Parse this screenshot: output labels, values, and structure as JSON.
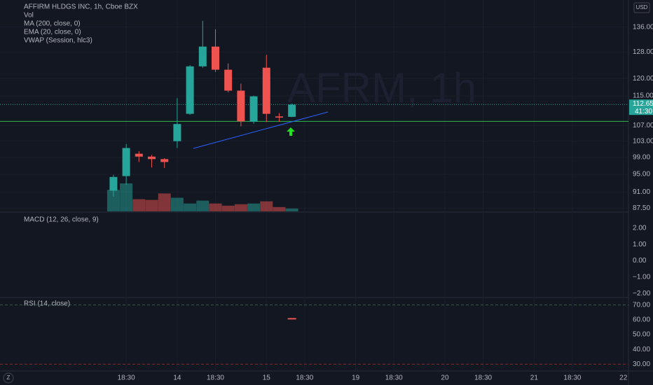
{
  "chart_data": [
    {
      "type": "candlestick",
      "title": "AFFIRM HLDGS INC, 1h, Cboe BZX",
      "legend_items": [
        "Vol",
        "MA (200, close, 0)",
        "EMA (20, close, 0)",
        "VWAP (Session, hlc3)"
      ],
      "currency": "USD",
      "watermark": "AFRM, 1h",
      "x": [
        0,
        1,
        2,
        3,
        4,
        5,
        6,
        7,
        8,
        9,
        10,
        11,
        12,
        13,
        14
      ],
      "open": [
        91.3,
        94.6,
        99.9,
        99.2,
        98.6,
        103.0,
        110.1,
        123.6,
        129.7,
        122.6,
        116.5,
        108.0,
        123.2,
        109.4,
        109.3
      ],
      "high": [
        94.9,
        102.3,
        100.5,
        99.6,
        98.8,
        114.4,
        124.0,
        138.1,
        135.3,
        124.5,
        118.5,
        115.1,
        127.1,
        110.3,
        112.9
      ],
      "low": [
        90.0,
        92.6,
        97.9,
        96.6,
        96.5,
        101.3,
        109.8,
        123.2,
        121.9,
        116.0,
        106.8,
        107.5,
        107.9,
        108.0,
        109.2
      ],
      "close": [
        94.4,
        101.3,
        99.2,
        98.6,
        97.9,
        107.4,
        123.6,
        129.7,
        122.6,
        116.5,
        108.1,
        114.9,
        110.1,
        109.1,
        112.6
      ],
      "volume": [
        30,
        39,
        17,
        16,
        25,
        19,
        11,
        15,
        11,
        8,
        10,
        11,
        14,
        6,
        4
      ],
      "up_color": "#26a69a",
      "down_color": "#ef5350",
      "log_scale": true,
      "grid": true,
      "xlim": [
        -8.9,
        40.4
      ],
      "xticks": [
        {
          "value": 1,
          "label": "18:30"
        },
        {
          "value": 5,
          "label": "14"
        },
        {
          "value": 8,
          "label": "18:30"
        },
        {
          "value": 12,
          "label": "15"
        },
        {
          "value": 15,
          "label": "18:30"
        },
        {
          "value": 19,
          "label": "19"
        },
        {
          "value": 22,
          "label": "18:30"
        },
        {
          "value": 26,
          "label": "20"
        },
        {
          "value": 29,
          "label": "18:30"
        },
        {
          "value": 33,
          "label": "21"
        },
        {
          "value": 36,
          "label": "18:30"
        },
        {
          "value": 40,
          "label": "22"
        }
      ],
      "ylim": [
        86.8,
        145.3
      ],
      "yticks": [
        {
          "value": 87.5,
          "label": "87.50"
        },
        {
          "value": 91,
          "label": "91.00"
        },
        {
          "value": 95,
          "label": "95.00"
        },
        {
          "value": 99,
          "label": "99.00"
        },
        {
          "value": 103,
          "label": "103.00"
        },
        {
          "value": 107,
          "label": "107.00"
        },
        {
          "value": 115,
          "label": "115.00"
        },
        {
          "value": 120,
          "label": "120.00"
        },
        {
          "value": 128,
          "label": "128.00"
        },
        {
          "value": 136,
          "label": "136.00"
        }
      ],
      "hline": 108.1,
      "hline_color": "#2db84d",
      "last_price": {
        "value": 112.65,
        "label": "112.65"
      },
      "countdown": "41:30"
    },
    {
      "type": "indicator",
      "title": "MACD (12, 26, close, 9)",
      "ylim": [
        -2.2,
        2.89
      ],
      "yticks": [
        {
          "value": 2,
          "label": "2.00"
        },
        {
          "value": 1,
          "label": "1.00"
        },
        {
          "value": 0,
          "label": "0.00"
        },
        {
          "value": -1,
          "label": "−1.00"
        },
        {
          "value": -2,
          "label": "−2.00"
        }
      ]
    },
    {
      "type": "indicator",
      "title": "RSI (14, close)",
      "x": [
        14
      ],
      "values": [
        60.7
      ],
      "color": "#ef5350",
      "bands": [
        70,
        30
      ],
      "ylim": [
        25.9,
        74.1
      ],
      "yticks": [
        {
          "value": 70,
          "label": "70.00"
        },
        {
          "value": 60,
          "label": "60.00"
        },
        {
          "value": 50,
          "label": "50.00"
        },
        {
          "value": 40,
          "label": "40.00"
        },
        {
          "value": 30,
          "label": "30.00"
        }
      ]
    }
  ]
}
